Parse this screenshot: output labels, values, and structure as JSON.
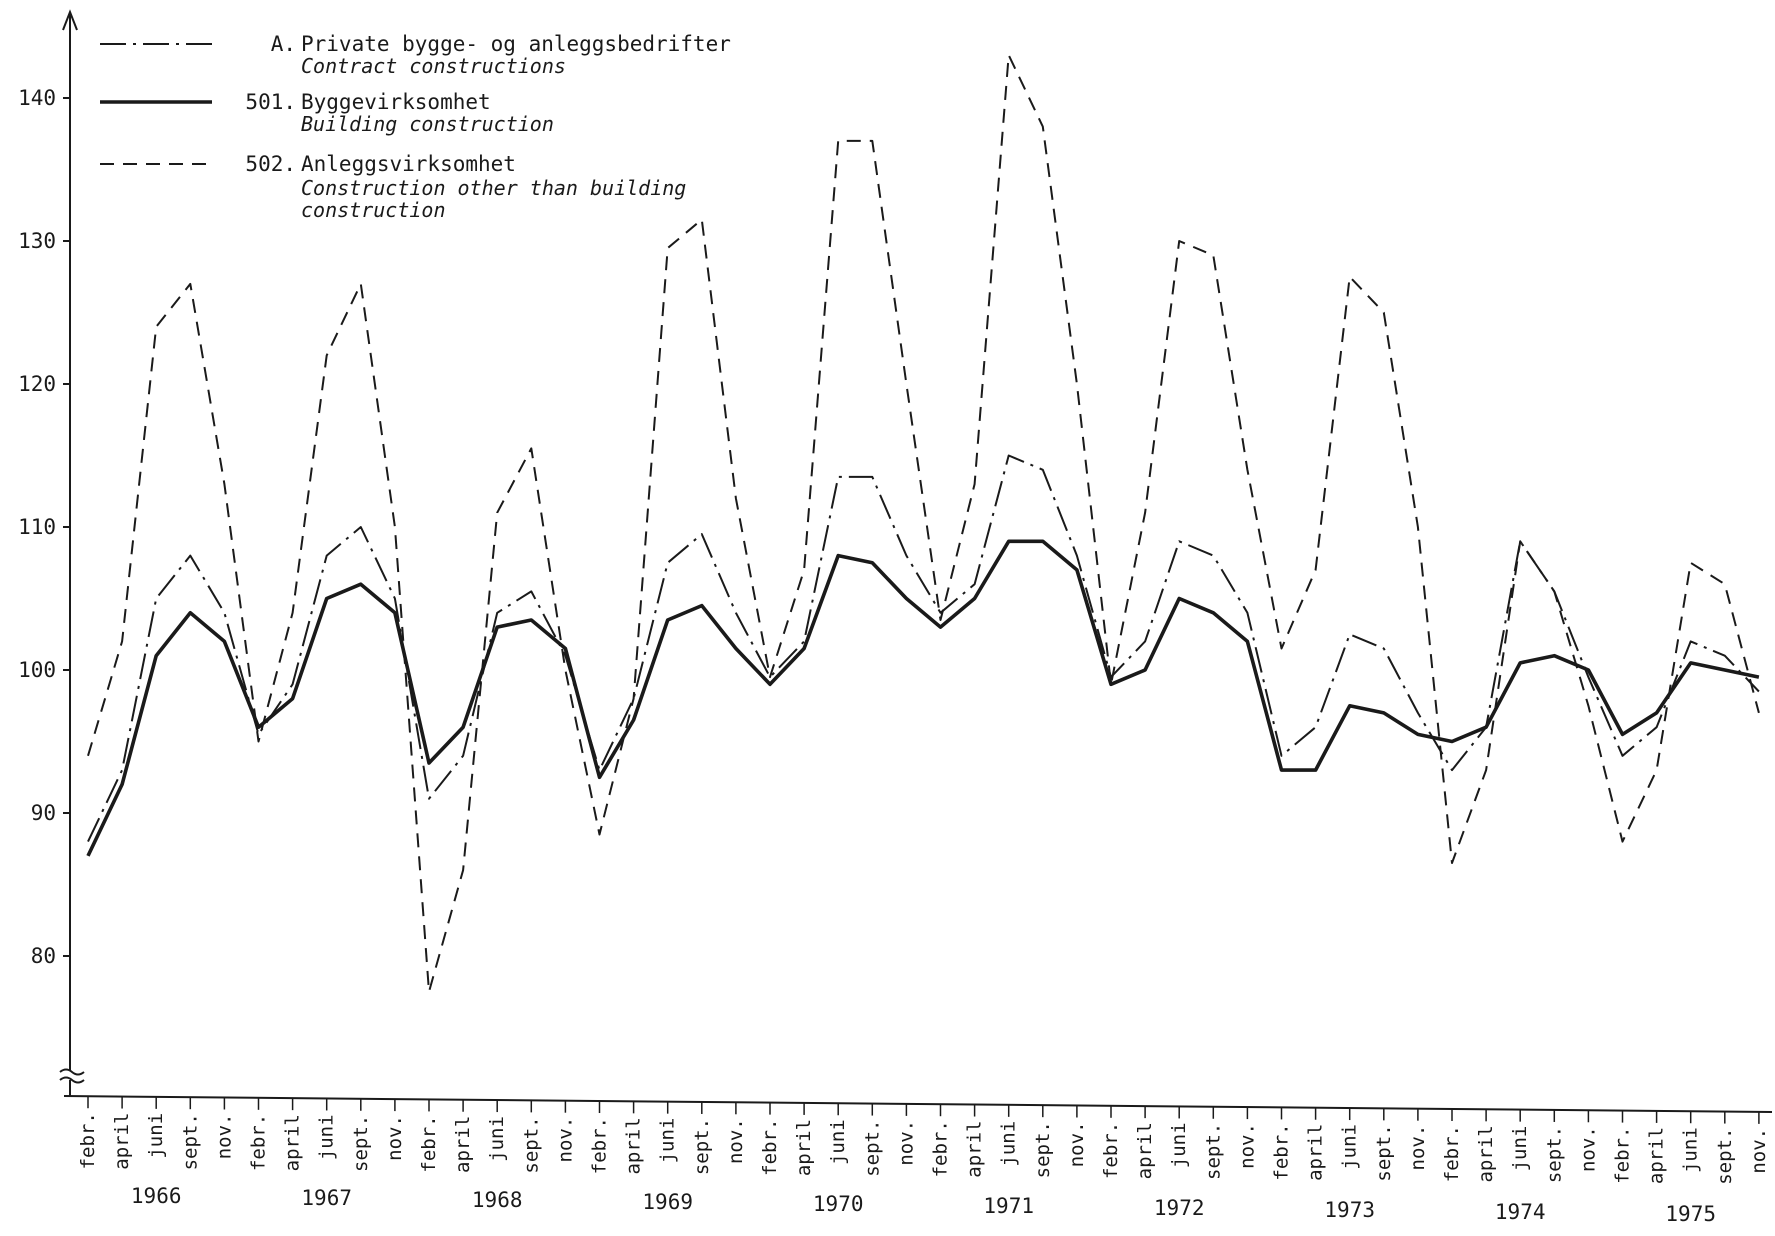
{
  "chart_data": {
    "type": "line",
    "title": "",
    "xlabel": "",
    "ylabel": "",
    "ylim": [
      70,
      145
    ],
    "yticks": [
      80,
      90,
      100,
      110,
      120,
      130,
      140
    ],
    "axis_break": true,
    "grid": false,
    "legend_position": "top-left",
    "years": [
      "1966",
      "1967",
      "1968",
      "1969",
      "1970",
      "1971",
      "1972",
      "1973",
      "1974",
      "1975"
    ],
    "month_labels": [
      "febr.",
      "april",
      "juni",
      "sept.",
      "nov."
    ],
    "categories": [
      "febr. 1966",
      "april 1966",
      "juni 1966",
      "sept. 1966",
      "nov. 1966",
      "febr. 1967",
      "april 1967",
      "juni 1967",
      "sept. 1967",
      "nov. 1967",
      "febr. 1968",
      "april 1968",
      "juni 1968",
      "sept. 1968",
      "nov. 1968",
      "febr. 1969",
      "april 1969",
      "juni 1969",
      "sept. 1969",
      "nov. 1969",
      "febr. 1970",
      "april 1970",
      "juni 1970",
      "sept. 1970",
      "nov. 1970",
      "febr. 1971",
      "april 1971",
      "juni 1971",
      "sept. 1971",
      "nov. 1971",
      "febr. 1972",
      "april 1972",
      "juni 1972",
      "sept. 1972",
      "nov. 1972",
      "febr. 1973",
      "april 1973",
      "juni 1973",
      "sept. 1973",
      "nov. 1973",
      "febr. 1974",
      "april 1974",
      "juni 1974",
      "sept. 1974",
      "nov. 1974",
      "febr. 1975",
      "april 1975",
      "juni 1975",
      "sept. 1975",
      "nov. 1975"
    ],
    "series": [
      {
        "name": "Private bygge- og anleggsbedrifter",
        "name_en": "Contract constructions",
        "code": "A.",
        "style": "dash-dot",
        "values": [
          88,
          93,
          105,
          108,
          104,
          95.5,
          99,
          108,
          110,
          105,
          91,
          94,
          104,
          105.5,
          101,
          93,
          98,
          107.5,
          109.5,
          104,
          99.5,
          102,
          113.5,
          113.5,
          108,
          104,
          106,
          115,
          114,
          108,
          99.5,
          102,
          109,
          108,
          104,
          94,
          96,
          102.5,
          101.5,
          97,
          93,
          96,
          109,
          105.5,
          99.5,
          94,
          96,
          102,
          101,
          98.5
        ]
      },
      {
        "name": "Byggevirksomhet",
        "name_en": "Building construction",
        "code": "501.",
        "style": "solid",
        "values": [
          87,
          92,
          101,
          104,
          102,
          96,
          98,
          105,
          106,
          104,
          93.5,
          96,
          103,
          103.5,
          101.5,
          92.5,
          96.5,
          103.5,
          104.5,
          101.5,
          99,
          101.5,
          108,
          107.5,
          105,
          103,
          105,
          109,
          109,
          107,
          99,
          100,
          105,
          104,
          102,
          93,
          93,
          97.5,
          97,
          95.5,
          95,
          96,
          100.5,
          101,
          100,
          95.5,
          97,
          100.5,
          100,
          99.5
        ]
      },
      {
        "name": "Anleggsvirksomhet",
        "name_en": "Construction other than building construction",
        "code": "502.",
        "style": "dashed",
        "values": [
          94,
          102,
          124,
          127,
          113,
          95,
          104,
          122,
          127,
          110,
          77.5,
          86,
          111,
          115.5,
          100,
          88.5,
          98,
          129.5,
          131.5,
          112,
          99.5,
          107,
          137,
          137,
          120,
          103.5,
          113,
          143,
          138,
          120,
          99,
          111,
          130,
          129,
          114,
          101.5,
          107,
          127.5,
          125,
          110,
          86.5,
          93,
          109,
          105.5,
          97.5,
          88,
          93,
          107.5,
          106,
          97
        ]
      }
    ]
  }
}
